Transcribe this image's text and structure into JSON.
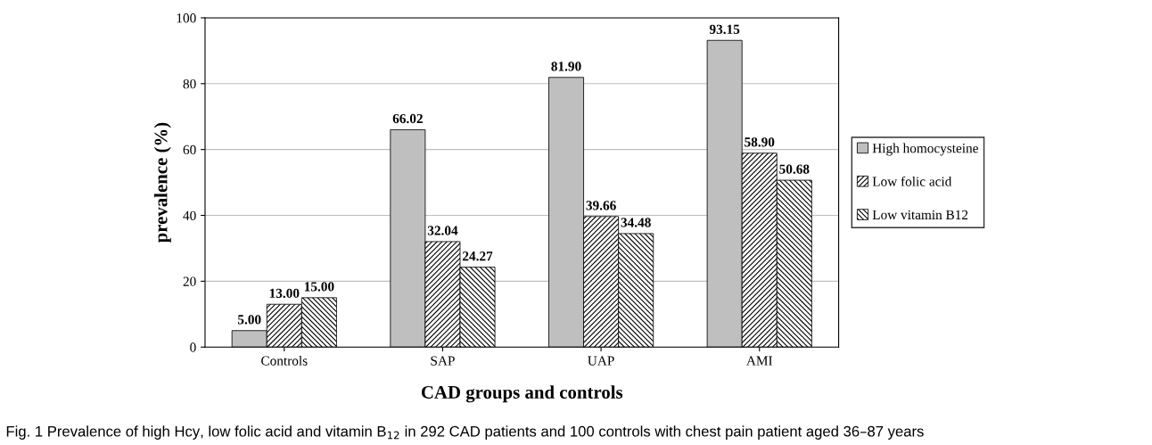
{
  "chart_data": {
    "type": "bar",
    "xlabel": "CAD groups and controls",
    "ylabel": "prevalence (%)",
    "categories": [
      "Controls",
      "SAP",
      "UAP",
      "AMI"
    ],
    "series": [
      {
        "name": "High homocysteine",
        "color": "#bfbfbf",
        "values": [
          5.0,
          66.02,
          81.9,
          93.15
        ],
        "value_labels": [
          "5.00",
          "66.02",
          "81.90",
          "93.15"
        ]
      },
      {
        "name": "Low folic acid",
        "color": "#000000",
        "values": [
          13.0,
          32.04,
          39.66,
          58.9
        ],
        "value_labels": [
          "13.00",
          "32.04",
          "39.66",
          "58.90"
        ]
      },
      {
        "name": "Low vitamin B12",
        "color": "#000000",
        "values": [
          15.0,
          24.27,
          34.48,
          50.68
        ],
        "value_labels": [
          "15.00",
          "24.27",
          "34.48",
          "50.68"
        ]
      }
    ],
    "ylim": [
      0,
      100
    ],
    "yticks": [
      0,
      20,
      40,
      60,
      80,
      100
    ],
    "grid": "y",
    "legend": "right",
    "annotations": [
      "Fig. 1 Prevalence of high Hcy, low folic acid and vitamin B$_{12}$ in 292 CAD patients and 100 controls with chest pain patient aged 36–87 years"
    ]
  }
}
